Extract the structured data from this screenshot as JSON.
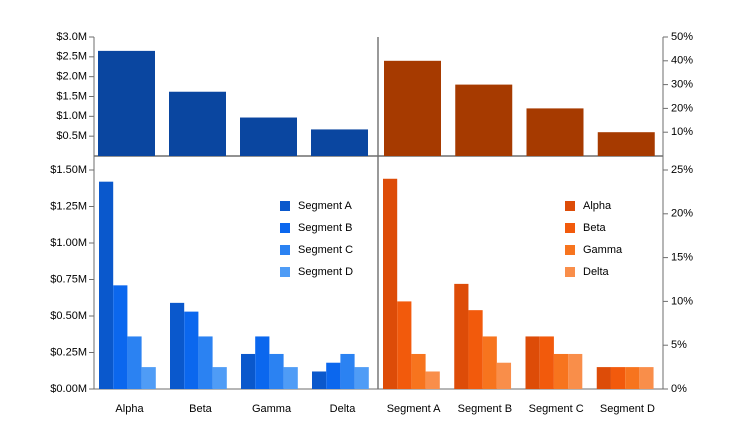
{
  "chart_data": [
    {
      "panel": "top-left",
      "type": "bar",
      "categories": [
        "Alpha",
        "Beta",
        "Gamma",
        "Delta"
      ],
      "values": [
        2.65,
        1.62,
        0.97,
        0.67
      ],
      "ylim": [
        0,
        3.0
      ],
      "yticks": [
        "$0.5M",
        "$1.0M",
        "$1.5M",
        "$2.0M",
        "$2.5M",
        "$3.0M"
      ],
      "ytick_values": [
        0.5,
        1.0,
        1.5,
        2.0,
        2.5,
        3.0
      ],
      "color": "#0a46a0"
    },
    {
      "panel": "top-right",
      "type": "bar",
      "categories": [
        "Segment A",
        "Segment B",
        "Segment C",
        "Segment D"
      ],
      "values": [
        40,
        30,
        20,
        10
      ],
      "ylim": [
        0,
        50
      ],
      "yticks": [
        "10%",
        "20%",
        "30%",
        "40%",
        "50%"
      ],
      "ytick_values": [
        10,
        20,
        30,
        40,
        50
      ],
      "color": "#a63a00"
    },
    {
      "panel": "bottom-left",
      "type": "bar",
      "categories": [
        "Alpha",
        "Beta",
        "Gamma",
        "Delta"
      ],
      "series": [
        {
          "name": "Segment A",
          "values": [
            1.42,
            0.59,
            0.24,
            0.12
          ],
          "color": "#0a58cc"
        },
        {
          "name": "Segment B",
          "values": [
            0.71,
            0.53,
            0.36,
            0.18
          ],
          "color": "#0b67ee"
        },
        {
          "name": "Segment C",
          "values": [
            0.36,
            0.36,
            0.24,
            0.24
          ],
          "color": "#2b82f2"
        },
        {
          "name": "Segment D",
          "values": [
            0.15,
            0.15,
            0.15,
            0.15
          ],
          "color": "#4f9cf6"
        }
      ],
      "ylim": [
        0,
        1.5
      ],
      "yticks": [
        "$0.00M",
        "$0.25M",
        "$0.50M",
        "$0.75M",
        "$1.00M",
        "$1.25M",
        "$1.50M"
      ],
      "ytick_values": [
        0,
        0.25,
        0.5,
        0.75,
        1.0,
        1.25,
        1.5
      ],
      "legend_position": "top-right"
    },
    {
      "panel": "bottom-right",
      "type": "bar",
      "categories": [
        "Segment A",
        "Segment B",
        "Segment C",
        "Segment D"
      ],
      "series": [
        {
          "name": "Alpha",
          "values": [
            24,
            12,
            6,
            2.5
          ],
          "color": "#dd4c08"
        },
        {
          "name": "Beta",
          "values": [
            10,
            9,
            6,
            2.5
          ],
          "color": "#f25a0c"
        },
        {
          "name": "Gamma",
          "values": [
            4,
            6,
            4,
            2.5
          ],
          "color": "#f7741e"
        },
        {
          "name": "Delta",
          "values": [
            2,
            3,
            4,
            2.5
          ],
          "color": "#f98e4a"
        }
      ],
      "ylim": [
        0,
        25
      ],
      "yticks": [
        "0%",
        "5%",
        "10%",
        "15%",
        "20%",
        "25%"
      ],
      "ytick_values": [
        0,
        5,
        10,
        15,
        20,
        25
      ],
      "legend_position": "top-right"
    }
  ]
}
